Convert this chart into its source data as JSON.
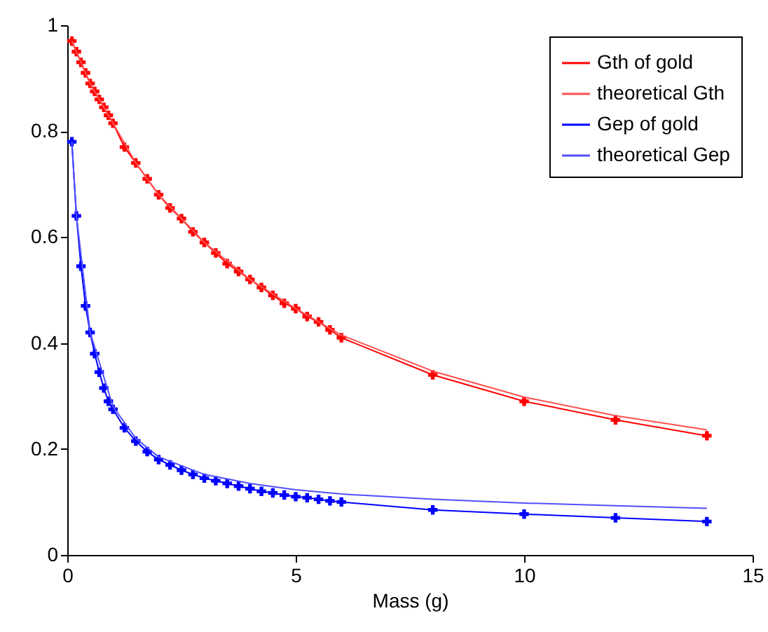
{
  "chart_data": {
    "type": "line",
    "xlabel": "Mass (g)",
    "xlim": [
      0,
      15
    ],
    "xticks": [
      0,
      5,
      10,
      15
    ],
    "ylim": [
      0,
      1
    ],
    "yticks": [
      0,
      0.2,
      0.4,
      0.6,
      0.8,
      1
    ],
    "grid": false,
    "legend": "top right",
    "line_style": "solid",
    "series": [
      {
        "name": "Gth of gold",
        "color": "#ff0000",
        "marker": "cross",
        "x": [
          0.1,
          0.2,
          0.3,
          0.4,
          0.5,
          0.6,
          0.7,
          0.8,
          0.9,
          1.0,
          1.25,
          1.5,
          1.75,
          2.0,
          2.25,
          2.5,
          2.75,
          3.0,
          3.25,
          3.5,
          3.75,
          4.0,
          4.25,
          4.5,
          4.75,
          5.0,
          5.25,
          5.5,
          5.75,
          6.0,
          8,
          10,
          12,
          14
        ],
        "values": [
          0.97,
          0.95,
          0.93,
          0.91,
          0.89,
          0.875,
          0.86,
          0.845,
          0.83,
          0.815,
          0.77,
          0.74,
          0.71,
          0.68,
          0.655,
          0.635,
          0.61,
          0.59,
          0.57,
          0.55,
          0.535,
          0.52,
          0.505,
          0.49,
          0.475,
          0.465,
          0.45,
          0.44,
          0.425,
          0.41,
          0.34,
          0.29,
          0.255,
          0.225
        ]
      },
      {
        "name": "theoretical Gth",
        "color": "#ff5050",
        "marker": "none",
        "x": [
          0.1,
          0.5,
          1,
          1.5,
          2,
          3,
          4,
          5,
          6,
          8,
          10,
          12,
          14
        ],
        "values": [
          0.97,
          0.89,
          0.815,
          0.74,
          0.68,
          0.59,
          0.52,
          0.465,
          0.415,
          0.347,
          0.298,
          0.263,
          0.236
        ]
      },
      {
        "name": "Gep of gold",
        "color": "#0000ff",
        "marker": "cross",
        "x": [
          0.1,
          0.2,
          0.3,
          0.4,
          0.5,
          0.6,
          0.7,
          0.8,
          0.9,
          1.0,
          1.25,
          1.5,
          1.75,
          2.0,
          2.25,
          2.5,
          2.75,
          3.0,
          3.25,
          3.5,
          3.75,
          4.0,
          4.25,
          4.5,
          4.75,
          5.0,
          5.25,
          5.5,
          5.75,
          6.0,
          8,
          10,
          12,
          14
        ],
        "values": [
          0.78,
          0.64,
          0.545,
          0.47,
          0.42,
          0.38,
          0.345,
          0.315,
          0.29,
          0.275,
          0.24,
          0.215,
          0.195,
          0.18,
          0.17,
          0.16,
          0.152,
          0.145,
          0.14,
          0.135,
          0.13,
          0.125,
          0.12,
          0.117,
          0.113,
          0.11,
          0.108,
          0.105,
          0.102,
          0.1,
          0.085,
          0.077,
          0.07,
          0.063
        ]
      },
      {
        "name": "theoretical Gep",
        "color": "#5050ff",
        "marker": "none",
        "x": [
          0.1,
          0.2,
          0.5,
          1,
          1.5,
          2,
          3,
          4,
          5,
          6,
          8,
          10,
          12,
          14
        ],
        "values": [
          0.78,
          0.64,
          0.42,
          0.28,
          0.22,
          0.185,
          0.152,
          0.135,
          0.123,
          0.115,
          0.105,
          0.098,
          0.093,
          0.088
        ]
      }
    ]
  }
}
